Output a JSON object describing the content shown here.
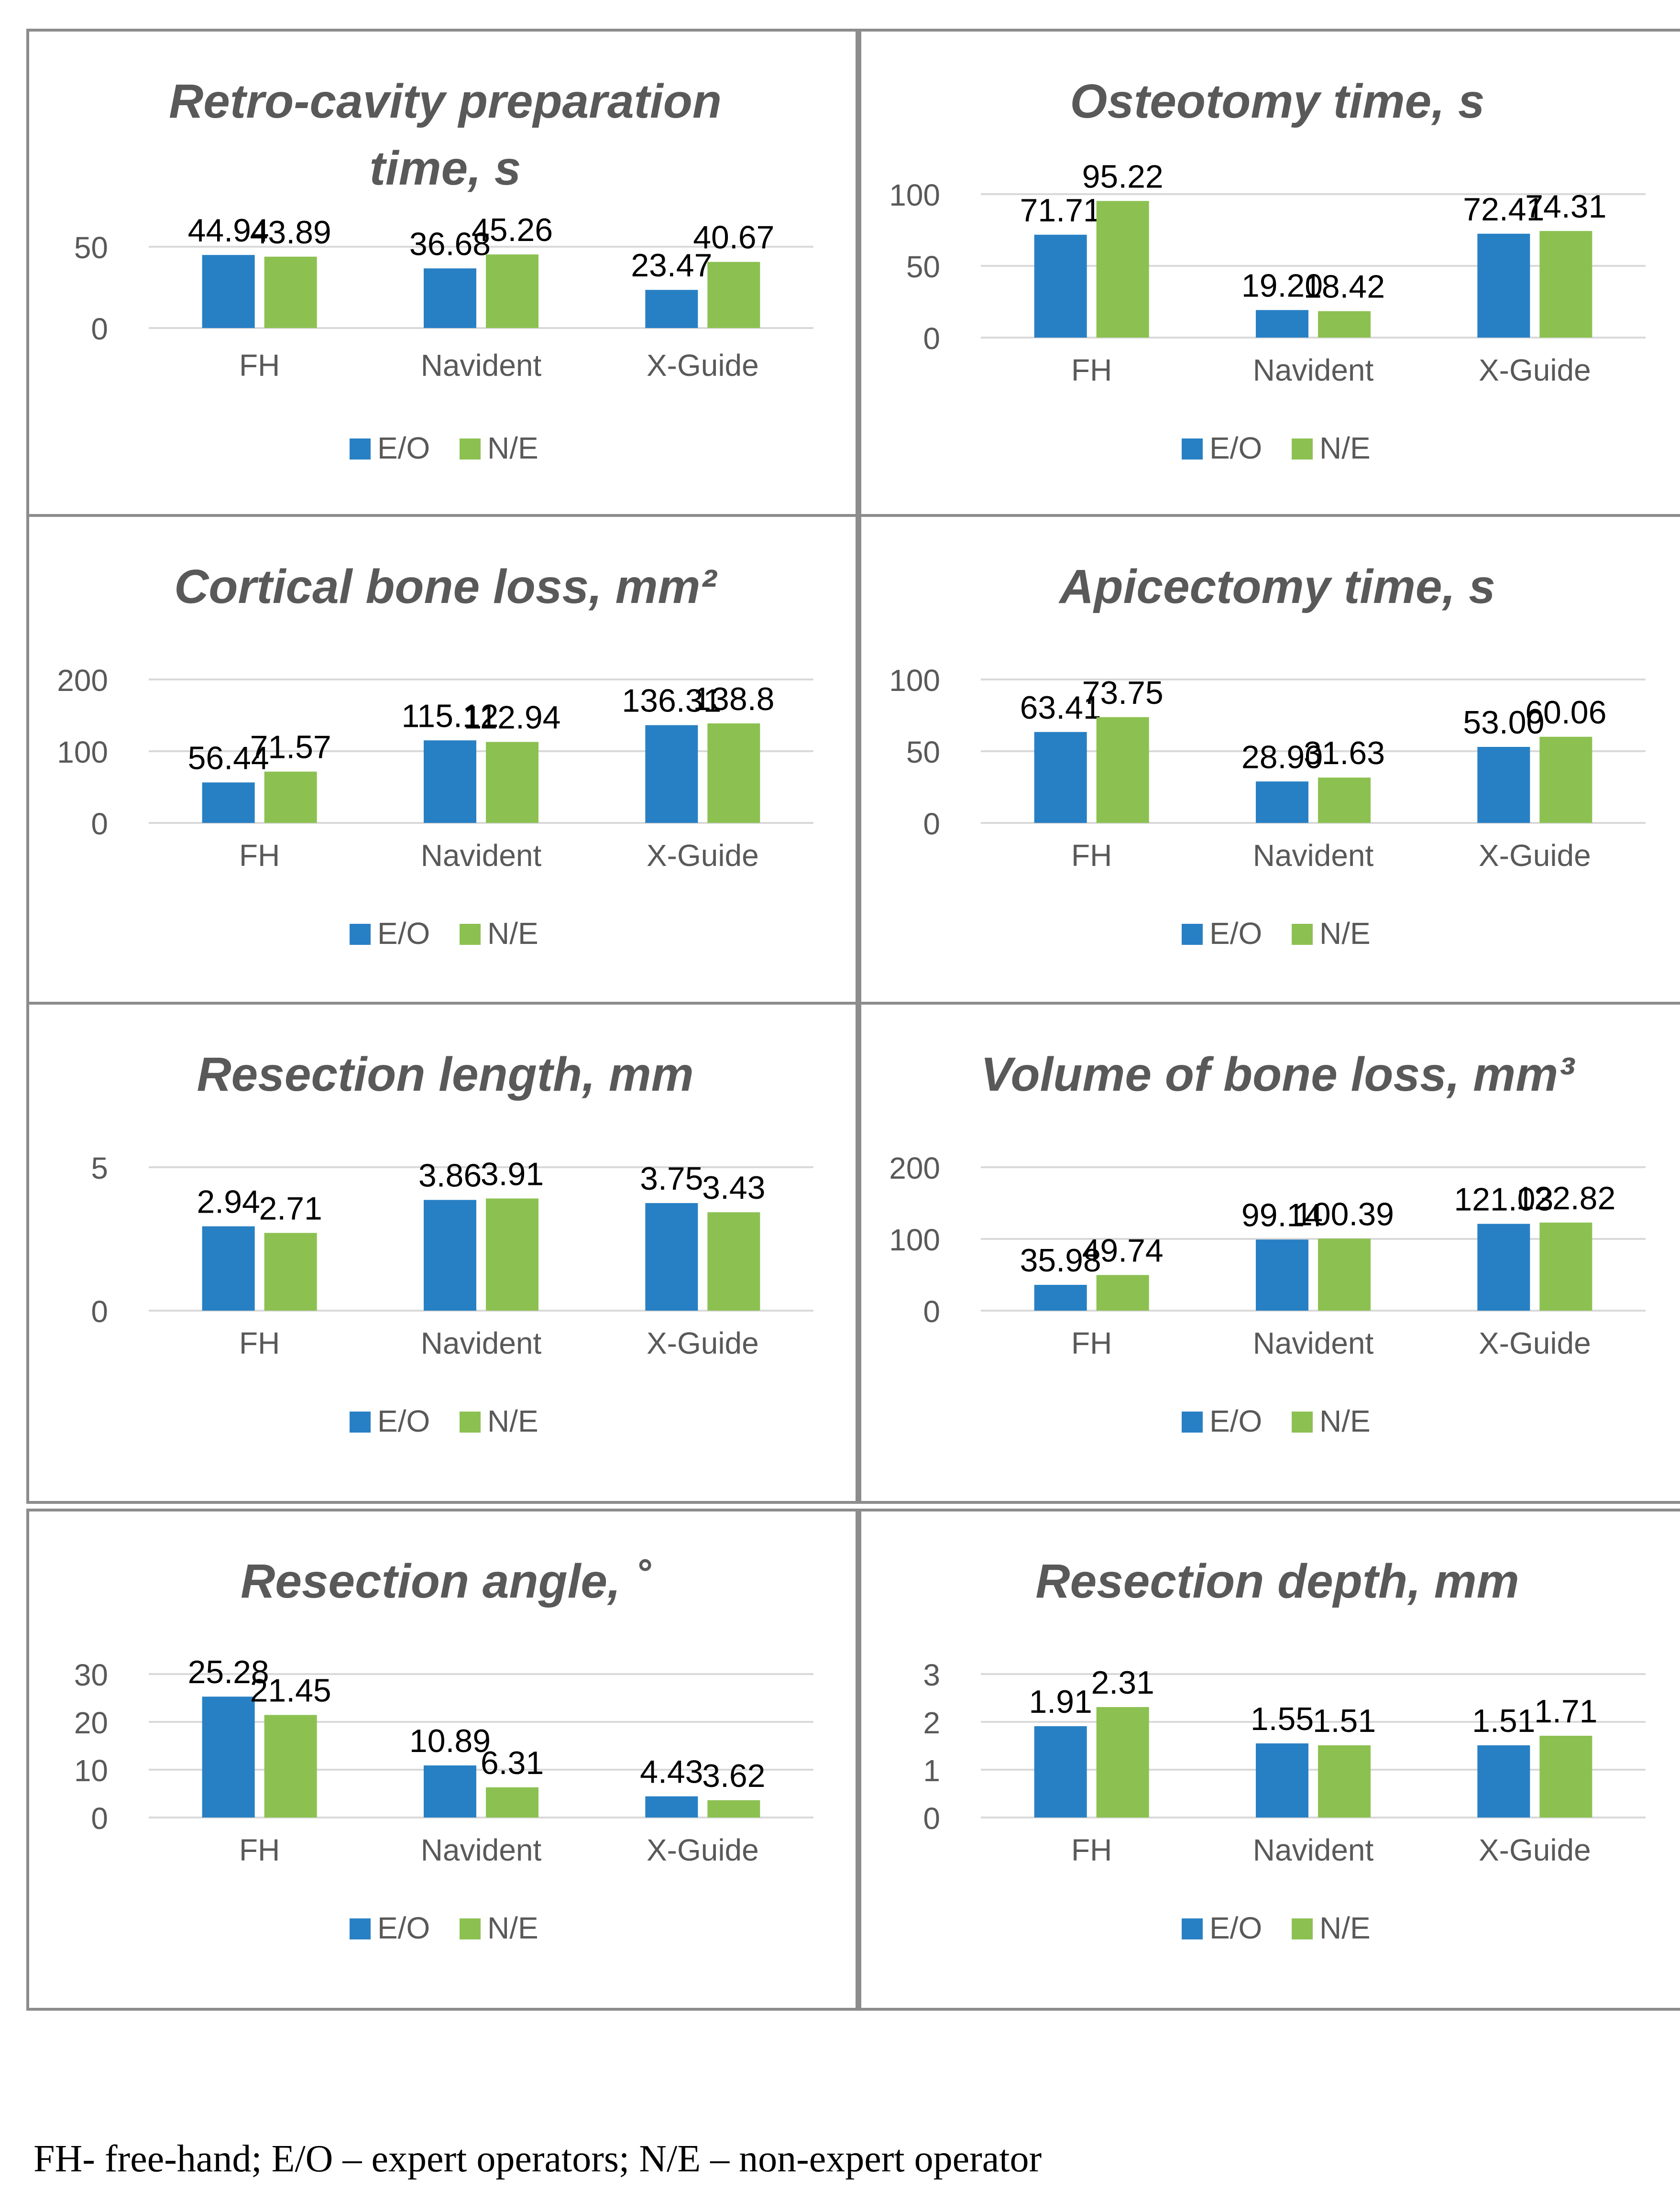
{
  "legend": {
    "series": [
      "E/O",
      "N/E"
    ],
    "colors": [
      "#2880c4",
      "#8cc152"
    ]
  },
  "chart_data": [
    {
      "type": "bar",
      "title_lines": [
        "Retro-cavity preparation",
        "time, s"
      ],
      "categories": [
        "FH",
        "Navident",
        "X-Guide"
      ],
      "series": [
        {
          "name": "E/O",
          "values": [
            44.94,
            36.68,
            23.47
          ]
        },
        {
          "name": "N/E",
          "values": [
            43.89,
            45.26,
            40.67
          ]
        }
      ],
      "labels": [
        [
          "44.94",
          "36.68",
          "23.47"
        ],
        [
          "43.89",
          "45.26",
          "40.67"
        ]
      ],
      "yticks": [
        0,
        50
      ],
      "ylim": [
        0,
        50
      ]
    },
    {
      "type": "bar",
      "title_lines": [
        "Osteotomy time, s"
      ],
      "categories": [
        "FH",
        "Navident",
        "X-Guide"
      ],
      "series": [
        {
          "name": "E/O",
          "values": [
            71.71,
            19.2,
            72.41
          ]
        },
        {
          "name": "N/E",
          "values": [
            95.22,
            18.42,
            74.31
          ]
        }
      ],
      "labels": [
        [
          "71.71",
          "19.20",
          "72.41"
        ],
        [
          "95.22",
          "18.42",
          "74.31"
        ]
      ],
      "yticks": [
        0,
        50,
        100
      ],
      "ylim": [
        0,
        100
      ]
    },
    {
      "type": "bar",
      "title_lines": [
        "Cortical bone loss, mm²"
      ],
      "categories": [
        "FH",
        "Navident",
        "X-Guide"
      ],
      "series": [
        {
          "name": "E/O",
          "values": [
            56.44,
            115.12,
            136.31
          ]
        },
        {
          "name": "N/E",
          "values": [
            71.57,
            112.94,
            138.8
          ]
        }
      ],
      "labels": [
        [
          "56.44",
          "115.12",
          "136.31"
        ],
        [
          "71.57",
          "112.94",
          "138.8"
        ]
      ],
      "yticks": [
        0,
        100,
        200
      ],
      "ylim": [
        0,
        200
      ]
    },
    {
      "type": "bar",
      "title_lines": [
        "Apicectomy time, s"
      ],
      "categories": [
        "FH",
        "Navident",
        "X-Guide"
      ],
      "series": [
        {
          "name": "E/O",
          "values": [
            63.41,
            28.9,
            53.0
          ]
        },
        {
          "name": "N/E",
          "values": [
            73.75,
            31.63,
            60.06
          ]
        }
      ],
      "labels": [
        [
          "63.41",
          "28.90",
          "53.00"
        ],
        [
          "73.75",
          "31.63",
          "60.06"
        ]
      ],
      "yticks": [
        0,
        50,
        100
      ],
      "ylim": [
        0,
        100
      ]
    },
    {
      "type": "bar",
      "title_lines": [
        "Resection length, mm"
      ],
      "categories": [
        "FH",
        "Navident",
        "X-Guide"
      ],
      "series": [
        {
          "name": "E/O",
          "values": [
            2.94,
            3.86,
            3.75
          ]
        },
        {
          "name": "N/E",
          "values": [
            2.71,
            3.91,
            3.43
          ]
        }
      ],
      "labels": [
        [
          "2.94",
          "3.86",
          "3.75"
        ],
        [
          "2.71",
          "3.91",
          "3.43"
        ]
      ],
      "yticks": [
        0,
        5
      ],
      "ylim": [
        0,
        5
      ]
    },
    {
      "type": "bar",
      "title_lines": [
        "Volume of bone loss, mm³"
      ],
      "categories": [
        "FH",
        "Navident",
        "X-Guide"
      ],
      "series": [
        {
          "name": "E/O",
          "values": [
            35.98,
            99.14,
            121.03
          ]
        },
        {
          "name": "N/E",
          "values": [
            49.74,
            100.39,
            122.82
          ]
        }
      ],
      "labels": [
        [
          "35.98",
          "99.14",
          "121.03"
        ],
        [
          "49.74",
          "100.39",
          "122.82"
        ]
      ],
      "yticks": [
        0,
        100,
        200
      ],
      "ylim": [
        0,
        200
      ]
    },
    {
      "type": "bar",
      "title_lines": [
        "Resection angle, ˚"
      ],
      "categories": [
        "FH",
        "Navident",
        "X-Guide"
      ],
      "series": [
        {
          "name": "E/O",
          "values": [
            25.28,
            10.89,
            4.43
          ]
        },
        {
          "name": "N/E",
          "values": [
            21.45,
            6.31,
            3.62
          ]
        }
      ],
      "labels": [
        [
          "25.28",
          "10.89",
          "4.43"
        ],
        [
          "21.45",
          "6.31",
          "3.62"
        ]
      ],
      "yticks": [
        0,
        10,
        20,
        30
      ],
      "ylim": [
        0,
        30
      ]
    },
    {
      "type": "bar",
      "title_lines": [
        "Resection depth, mm"
      ],
      "categories": [
        "FH",
        "Navident",
        "X-Guide"
      ],
      "series": [
        {
          "name": "E/O",
          "values": [
            1.91,
            1.55,
            1.51
          ]
        },
        {
          "name": "N/E",
          "values": [
            2.31,
            1.51,
            1.71
          ]
        }
      ],
      "labels": [
        [
          "1.91",
          "1.55",
          "1.51"
        ],
        [
          "2.31",
          "1.51",
          "1.71"
        ]
      ],
      "yticks": [
        0,
        1,
        2,
        3
      ],
      "ylim": [
        0,
        3
      ]
    }
  ],
  "caption": "FH- free-hand; E/O – expert operators; N/E – non-expert operator"
}
